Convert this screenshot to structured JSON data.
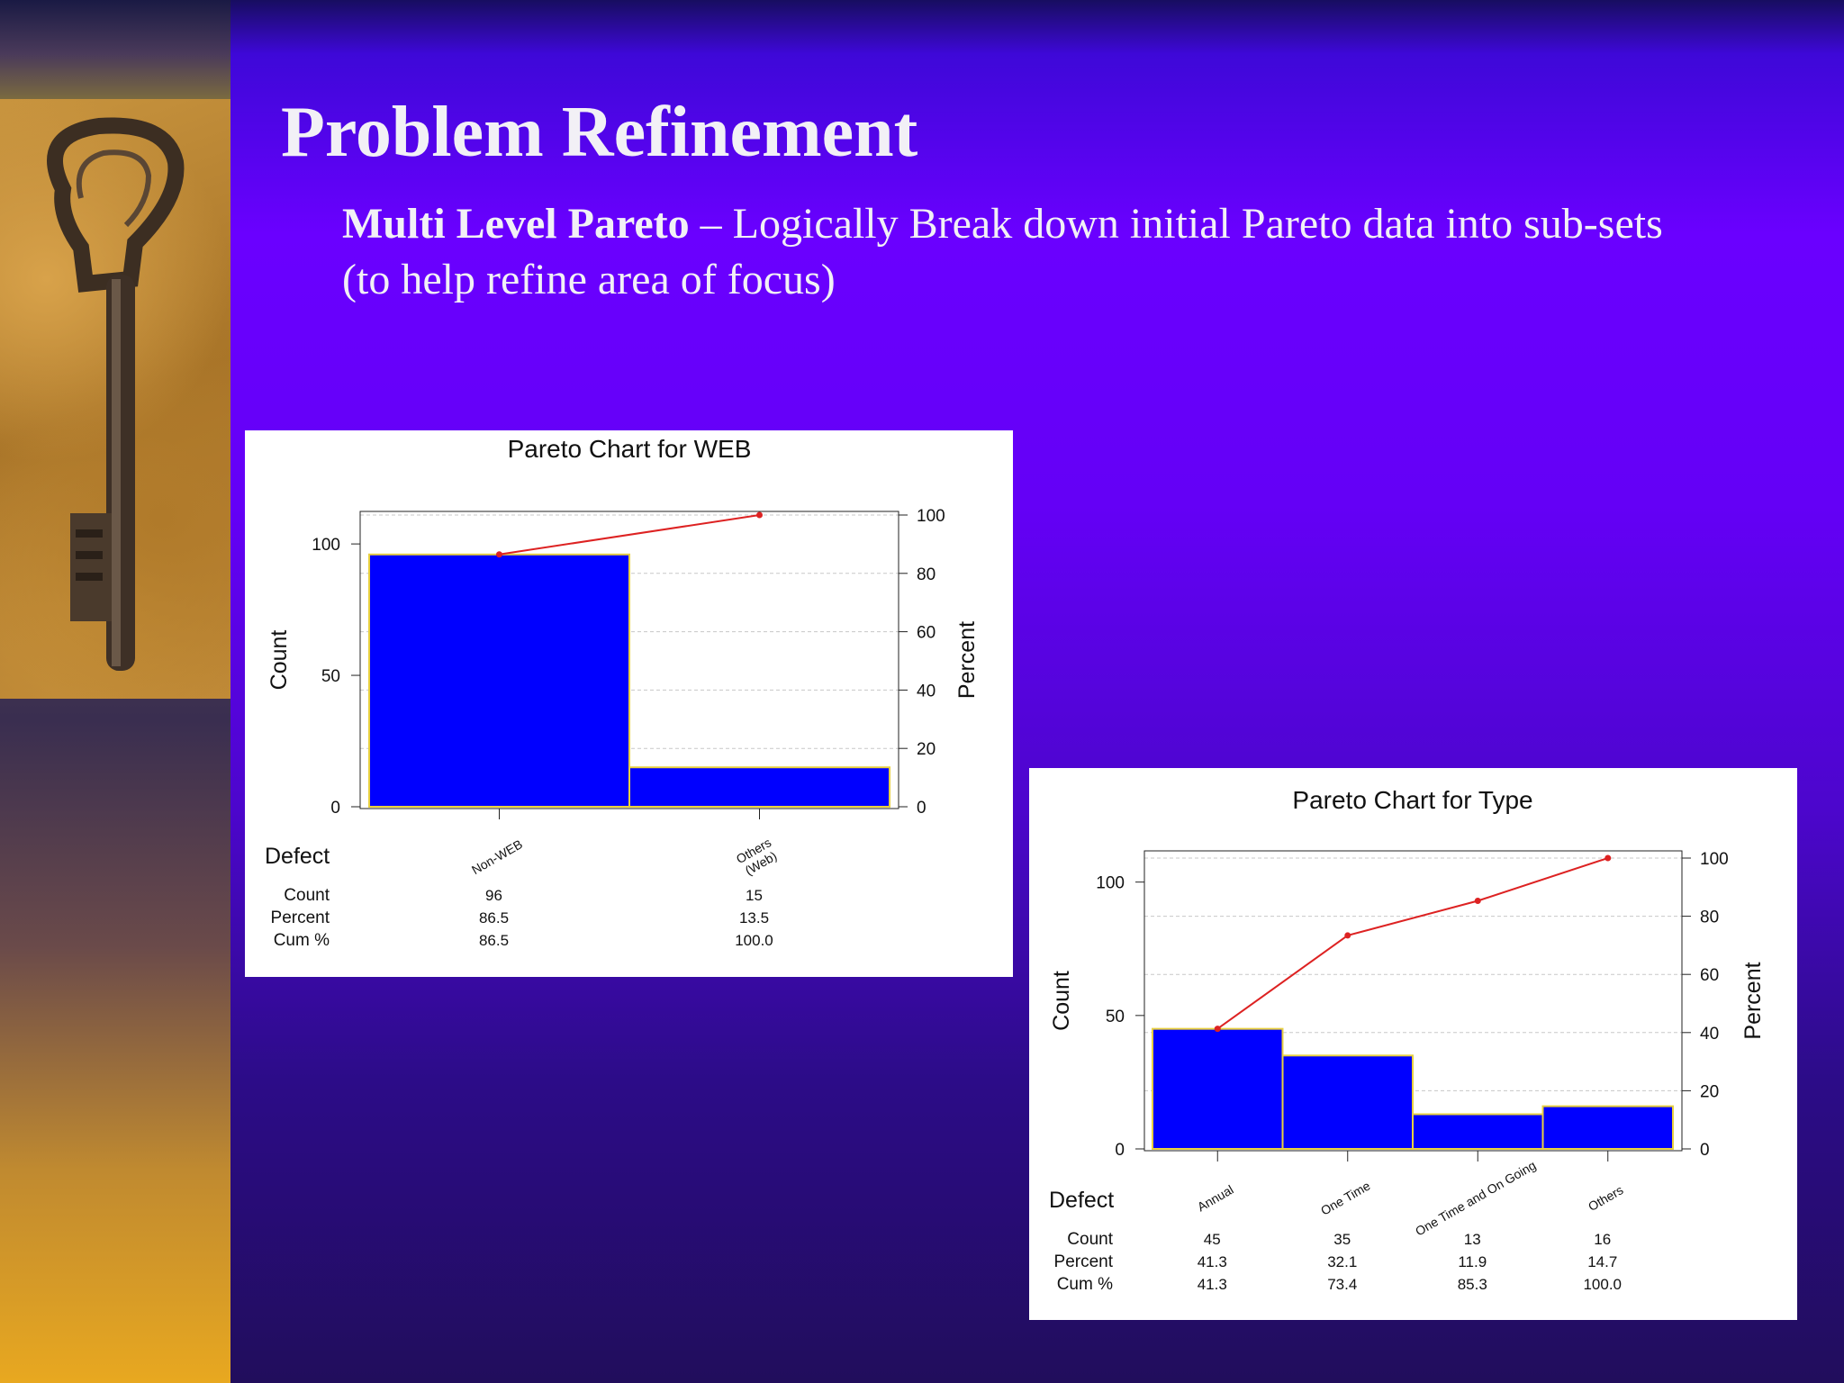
{
  "slide": {
    "title": "Problem Refinement",
    "subtitle_bold": "Multi Level Pareto",
    "subtitle_rest": " – Logically Break down initial Pareto data into sub-sets (to help refine area of focus)"
  },
  "colors": {
    "bar_fill": "#0000ff",
    "bar_outline": "#e8d040",
    "cum_line": "#dd2222",
    "grid": "#c8c8c8"
  },
  "chart_data": [
    {
      "type": "bar",
      "title": "Pareto Chart for WEB",
      "categories": [
        "Non-WEB",
        "Others\n(Web)"
      ],
      "values": [
        96,
        15
      ],
      "percent": [
        86.5,
        13.5
      ],
      "cum_percent": [
        86.5,
        100.0
      ],
      "percent_labels": [
        "86.5",
        "13.5"
      ],
      "cum_labels": [
        "86.5",
        "100.0"
      ],
      "ylabel": "Count",
      "y2label": "Percent",
      "ylim": [
        0,
        111
      ],
      "y_ticks": [
        0,
        50,
        100
      ],
      "y2lim": [
        0,
        100
      ],
      "y2_ticks": [
        0,
        20,
        40,
        60,
        80,
        100
      ],
      "table_header": "Defect",
      "row_labels": [
        "Count",
        "Percent",
        "Cum %"
      ],
      "grid": true
    },
    {
      "type": "bar",
      "title": "Pareto Chart for Type",
      "categories": [
        "Annual",
        "One Time",
        "One Time and On Going",
        "Others"
      ],
      "values": [
        45,
        35,
        13,
        16
      ],
      "percent": [
        41.3,
        32.1,
        11.9,
        14.7
      ],
      "cum_percent": [
        41.3,
        73.4,
        85.3,
        100.0
      ],
      "percent_labels": [
        "41.3",
        "32.1",
        "11.9",
        "14.7"
      ],
      "cum_labels": [
        "41.3",
        "73.4",
        "85.3",
        "100.0"
      ],
      "ylabel": "Count",
      "y2label": "Percent",
      "ylim": [
        0,
        109
      ],
      "y_ticks": [
        0,
        50,
        100
      ],
      "y2lim": [
        0,
        100
      ],
      "y2_ticks": [
        0,
        20,
        40,
        60,
        80,
        100
      ],
      "table_header": "Defect",
      "row_labels": [
        "Count",
        "Percent",
        "Cum %"
      ],
      "grid": true
    }
  ]
}
